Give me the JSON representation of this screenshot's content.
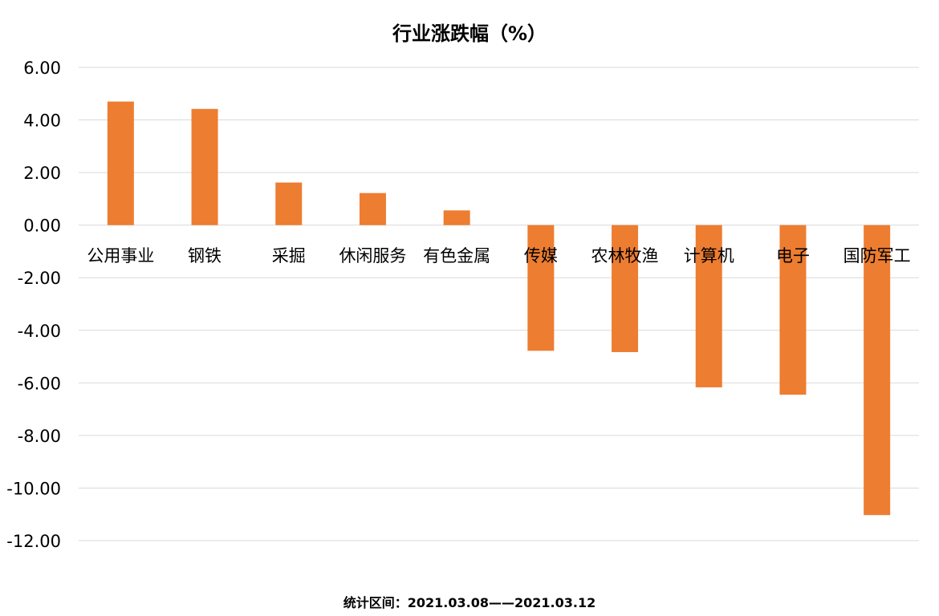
{
  "chart_data": {
    "type": "bar",
    "title": "行业涨跌幅（%）",
    "xlabel": "",
    "ylabel": "",
    "categories": [
      "公用事业",
      "钢铁",
      "采掘",
      "休闲服务",
      "有色金属",
      "传媒",
      "农林牧渔",
      "计算机",
      "电子",
      "国防军工"
    ],
    "values": [
      4.7,
      4.42,
      1.62,
      1.22,
      0.56,
      -4.78,
      -4.83,
      -6.17,
      -6.45,
      -11.03
    ],
    "ylim": [
      -12,
      6
    ],
    "yticks": [
      "6.00",
      "4.00",
      "2.00",
      "0.00",
      "-2.00",
      "-4.00",
      "-6.00",
      "-8.00",
      "-10.00",
      "-12.00"
    ],
    "grid": true,
    "legend": "none",
    "bar_color": "#ED7D31",
    "footnote": "统计区间：2021.03.08——2021.03.12"
  }
}
